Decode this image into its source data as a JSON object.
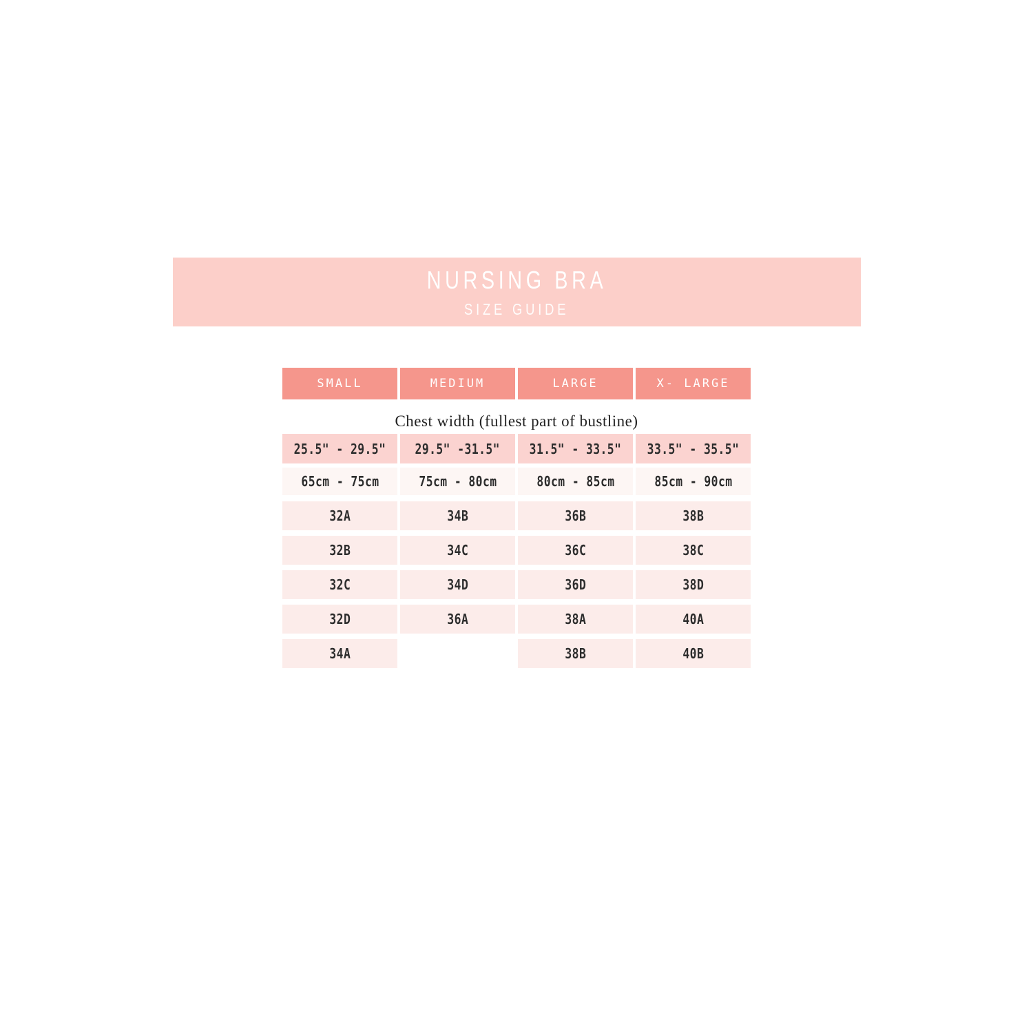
{
  "banner": {
    "title": "NURSING BRA",
    "subtitle": "SIZE GUIDE"
  },
  "section": {
    "chest_label": "Chest width (fullest part of bustline)"
  },
  "table": {
    "headers": [
      "SMALL",
      "MEDIUM",
      "LARGE",
      "X- LARGE"
    ],
    "inch_row": [
      "25.5\" - 29.5\"",
      "29.5\" -31.5\"",
      "31.5\" - 33.5\"",
      "33.5\" - 35.5\""
    ],
    "cm_row": [
      "65cm - 75cm",
      "75cm - 80cm",
      "80cm - 85cm",
      "85cm - 90cm"
    ],
    "size_rows": [
      [
        "32A",
        "34B",
        "36B",
        "38B"
      ],
      [
        "32B",
        "34C",
        "36C",
        "38C"
      ],
      [
        "32C",
        "34D",
        "36D",
        "38D"
      ],
      [
        "32D",
        "36A",
        "38A",
        "40A"
      ],
      [
        "34A",
        "",
        "38B",
        "40B"
      ]
    ]
  },
  "colors": {
    "banner_bg": "#fccfc9",
    "header_bg": "#f5968c",
    "inch_row_bg": "#fbd3d0",
    "cm_row_bg": "#fdf6f4",
    "size_row_bg": "#fcecea",
    "banner_text": "#ffffff",
    "table_text": "#2d2d2d"
  },
  "chart_data": {
    "type": "table",
    "title": "NURSING BRA",
    "subtitle": "SIZE GUIDE",
    "section_label": "Chest width (fullest part of bustline)",
    "columns": [
      "SMALL",
      "MEDIUM",
      "LARGE",
      "X- LARGE"
    ],
    "chest_width_inches": [
      "25.5\" - 29.5\"",
      "29.5\" -31.5\"",
      "31.5\" - 33.5\"",
      "33.5\" - 35.5\""
    ],
    "chest_width_cm": [
      "65cm - 75cm",
      "75cm - 80cm",
      "80cm - 85cm",
      "85cm - 90cm"
    ],
    "bra_sizes_by_column": {
      "SMALL": [
        "32A",
        "32B",
        "32C",
        "32D",
        "34A"
      ],
      "MEDIUM": [
        "34B",
        "34C",
        "34D",
        "36A"
      ],
      "LARGE": [
        "36B",
        "36C",
        "36D",
        "38A",
        "38B"
      ],
      "X- LARGE": [
        "38B",
        "38C",
        "38D",
        "40A",
        "40B"
      ]
    }
  }
}
